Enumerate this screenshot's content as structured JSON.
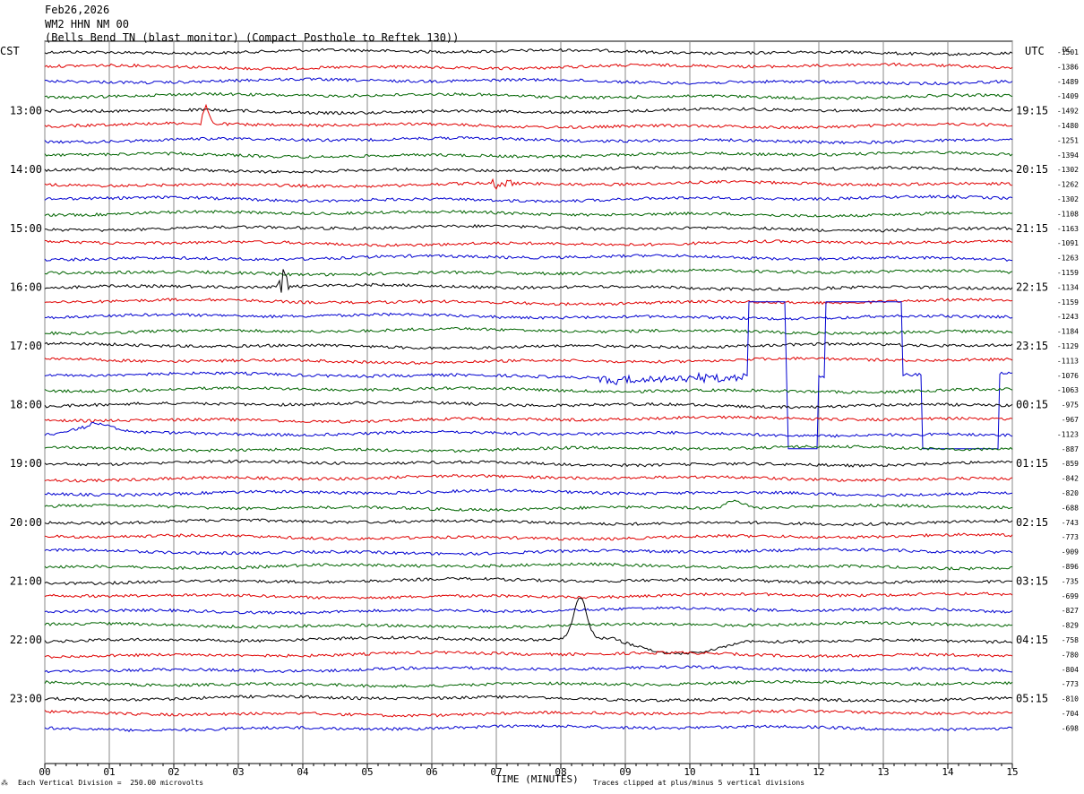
{
  "header": {
    "date": "Feb26,2026",
    "station": "WM2 HHN NM 00",
    "description": "(Bells Bend TN (blast monitor) (Compact Posthole to Reftek 130))"
  },
  "left_zone": "CST",
  "right_zone": "UTC",
  "dc_label": "DC",
  "footer": {
    "scale_note": "Each Vertical Division =  250.00 microvolts",
    "xlabel": "TIME (MINUTES)",
    "clip_note": "Traces clipped at plus/minus 5 vertical divisions"
  },
  "chart_data": {
    "type": "line",
    "title": "(Bells Bend TN (blast monitor) (Compact Posthole to Reftek 130))",
    "xlabel": "TIME (MINUTES)",
    "ylabel": "",
    "xlim": [
      0,
      15
    ],
    "x_ticks": [
      "00",
      "01",
      "02",
      "03",
      "04",
      "05",
      "06",
      "07",
      "08",
      "09",
      "10",
      "11",
      "12",
      "13",
      "14",
      "15"
    ],
    "grid": true,
    "trace_colors": [
      "#000000",
      "#e00000",
      "#0000d0",
      "#006400"
    ],
    "left_hour_labels": [
      "13:00",
      "14:00",
      "15:00",
      "16:00",
      "17:00",
      "18:00",
      "19:00",
      "20:00",
      "21:00",
      "22:00",
      "23:00"
    ],
    "right_hour_labels": [
      "19:15",
      "20:15",
      "21:15",
      "22:15",
      "23:15",
      "00:15",
      "01:15",
      "02:15",
      "03:15",
      "04:15",
      "05:15"
    ],
    "dc_offsets": [
      -1501,
      -1386,
      -1489,
      -1409,
      -1492,
      -1480,
      -1251,
      -1394,
      -1302,
      -1262,
      -1302,
      -1108,
      -1163,
      -1091,
      -1263,
      -1159,
      -1134,
      -1159,
      -1243,
      -1184,
      -1129,
      -1113,
      -1076,
      -1063,
      -975,
      -967,
      -1123,
      -887,
      -859,
      -842,
      -820,
      -688,
      -743,
      -773,
      -909,
      -896,
      -735,
      -699,
      -827,
      -829,
      -758,
      -780,
      -804,
      -773,
      -810,
      -704,
      -698
    ],
    "events": [
      {
        "trace": 5,
        "minute": 2.5,
        "type": "spike"
      },
      {
        "trace": 9,
        "minute": 7.1,
        "type": "burst"
      },
      {
        "trace": 16,
        "minute": 3.7,
        "type": "spike"
      },
      {
        "trace": 22,
        "minute": 11.0,
        "type": "clipped"
      },
      {
        "trace": 26,
        "minute": 0.7,
        "type": "swell"
      },
      {
        "trace": 31,
        "minute": 10.7,
        "type": "bump"
      },
      {
        "trace": 40,
        "minute": 8.3,
        "type": "pulse"
      }
    ]
  }
}
